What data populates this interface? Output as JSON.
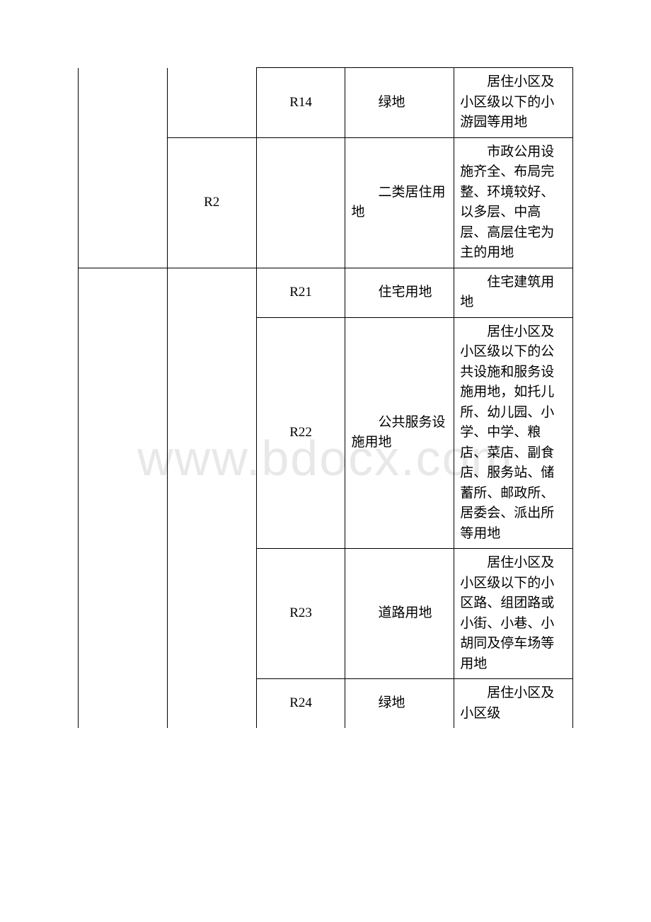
{
  "watermark": "www.bdocx.com",
  "table": {
    "columns": [
      {
        "class": "col1"
      },
      {
        "class": "col2"
      },
      {
        "class": "col3"
      },
      {
        "class": "col4"
      },
      {
        "class": "col5"
      }
    ],
    "border_color": "#000000",
    "background_color": "#ffffff",
    "text_color": "#000000",
    "font_size_pt": 14,
    "rows": [
      {
        "cells": [
          {
            "text": "",
            "rowspan": 2,
            "class": "code-cell no-top-border"
          },
          {
            "text": "",
            "rowspan": 1,
            "class": "code-cell no-top-border no-bottom-border"
          },
          {
            "text": "R14",
            "class": "code-cell"
          },
          {
            "text": "绿地",
            "class": "name-cell"
          },
          {
            "text": "居住小区及小区级以下的小游园等用地",
            "class": "desc-cell"
          }
        ]
      },
      {
        "cells": [
          {
            "text": "R2",
            "class": "code-cell"
          },
          {
            "text": "",
            "class": "code-cell"
          },
          {
            "text": "二类居住用地",
            "class": "name-cell"
          },
          {
            "text": "市政公用设施齐全、布局完整、环境较好、以多层、中高层、高层住宅为主的用地",
            "class": "desc-cell"
          }
        ]
      },
      {
        "cells": [
          {
            "text": "",
            "rowspan": 4,
            "class": "code-cell no-bottom-border"
          },
          {
            "text": "",
            "rowspan": 4,
            "class": "code-cell no-bottom-border"
          },
          {
            "text": "R21",
            "class": "code-cell"
          },
          {
            "text": "住宅用地",
            "class": "name-cell"
          },
          {
            "text": "住宅建筑用地",
            "class": "desc-cell"
          }
        ]
      },
      {
        "cells": [
          {
            "text": "R22",
            "class": "code-cell"
          },
          {
            "text": "公共服务设施用地",
            "class": "name-cell"
          },
          {
            "text": "居住小区及小区级以下的公共设施和服务设施用地，如托儿所、幼儿园、小学、中学、粮店、菜店、副食店、服务站、储蓄所、邮政所、居委会、派出所等用地",
            "class": "desc-cell"
          }
        ]
      },
      {
        "cells": [
          {
            "text": "R23",
            "class": "code-cell"
          },
          {
            "text": "道路用地",
            "class": "name-cell"
          },
          {
            "text": "居住小区及小区级以下的小区路、组团路或小街、小巷、小胡同及停车场等用地",
            "class": "desc-cell"
          }
        ]
      },
      {
        "cells": [
          {
            "text": "R24",
            "class": "code-cell no-bottom-border"
          },
          {
            "text": "绿地",
            "class": "name-cell no-bottom-border"
          },
          {
            "text": "居住小区及小区级",
            "class": "desc-cell no-bottom-border"
          }
        ]
      }
    ]
  }
}
